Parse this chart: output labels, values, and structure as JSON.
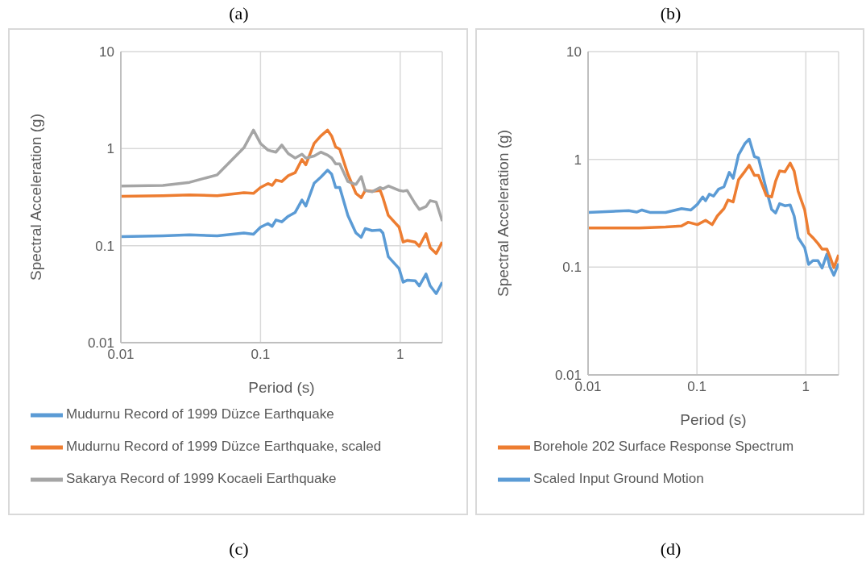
{
  "chart_data": [
    {
      "type": "line",
      "title": "(a)",
      "annotations": [
        "(c)"
      ],
      "xlabel": "Period (s)",
      "ylabel": "Spectral Acceleration (g)",
      "log": "xy",
      "grid": true,
      "legend": "bottom",
      "xlim": [
        0.01,
        2
      ],
      "xticks": [
        0.01,
        0.1,
        1
      ],
      "ylim": [
        0.01,
        10
      ],
      "yticks": [
        0.01,
        0.1,
        1,
        10
      ],
      "series": [
        {
          "name": "Mudurnu Record of 1999 Düzce Earthquake",
          "color": "#5b9bd5",
          "x": [
            0.01,
            0.02,
            0.031,
            0.049,
            0.076,
            0.089,
            0.1,
            0.113,
            0.121,
            0.129,
            0.142,
            0.158,
            0.177,
            0.198,
            0.211,
            0.242,
            0.27,
            0.302,
            0.323,
            0.345,
            0.369,
            0.422,
            0.482,
            0.526,
            0.562,
            0.629,
            0.719,
            0.752,
            0.822,
            0.982,
            1.05,
            1.12,
            1.28,
            1.37,
            1.53,
            1.64,
            1.81,
            2
          ],
          "values": [
            0.124,
            0.126,
            0.129,
            0.126,
            0.135,
            0.131,
            0.155,
            0.169,
            0.158,
            0.184,
            0.176,
            0.201,
            0.22,
            0.295,
            0.256,
            0.44,
            0.508,
            0.6,
            0.545,
            0.398,
            0.398,
            0.205,
            0.135,
            0.122,
            0.15,
            0.143,
            0.145,
            0.135,
            0.077,
            0.058,
            0.042,
            0.044,
            0.0435,
            0.0385,
            0.051,
            0.0385,
            0.032,
            0.042
          ]
        },
        {
          "name": "Mudurnu Record of 1999 Düzce Earthquake, scaled",
          "color": "#ed7d31",
          "x": [
            0.01,
            0.02,
            0.031,
            0.049,
            0.076,
            0.089,
            0.1,
            0.113,
            0.121,
            0.129,
            0.142,
            0.158,
            0.177,
            0.198,
            0.211,
            0.242,
            0.27,
            0.302,
            0.323,
            0.345,
            0.369,
            0.422,
            0.482,
            0.526,
            0.562,
            0.629,
            0.719,
            0.752,
            0.822,
            0.982,
            1.05,
            1.12,
            1.28,
            1.37,
            1.53,
            1.64,
            1.81,
            2
          ],
          "values": [
            0.323,
            0.327,
            0.334,
            0.327,
            0.351,
            0.346,
            0.398,
            0.436,
            0.418,
            0.474,
            0.458,
            0.526,
            0.565,
            0.773,
            0.681,
            1.13,
            1.35,
            1.55,
            1.35,
            1.04,
            0.986,
            0.545,
            0.346,
            0.312,
            0.371,
            0.364,
            0.371,
            0.312,
            0.205,
            0.155,
            0.109,
            0.113,
            0.109,
            0.0986,
            0.133,
            0.095,
            0.083,
            0.109
          ]
        },
        {
          "name": "Sakarya Record of 1999 Kocaeli Earthquake",
          "color": "#a5a5a5",
          "x": [
            0.01,
            0.02,
            0.031,
            0.049,
            0.076,
            0.089,
            0.1,
            0.113,
            0.121,
            0.129,
            0.142,
            0.158,
            0.177,
            0.198,
            0.211,
            0.242,
            0.27,
            0.302,
            0.323,
            0.345,
            0.369,
            0.422,
            0.482,
            0.526,
            0.562,
            0.629,
            0.719,
            0.752,
            0.822,
            0.982,
            1.05,
            1.12,
            1.28,
            1.37,
            1.53,
            1.64,
            1.81,
            2
          ],
          "values": [
            0.412,
            0.418,
            0.449,
            0.537,
            1.02,
            1.55,
            1.13,
            0.966,
            0.94,
            0.92,
            1.09,
            0.888,
            0.8,
            0.875,
            0.8,
            0.84,
            0.92,
            0.857,
            0.8,
            0.695,
            0.695,
            0.458,
            0.427,
            0.515,
            0.371,
            0.359,
            0.398,
            0.385,
            0.412,
            0.371,
            0.364,
            0.371,
            0.271,
            0.236,
            0.253,
            0.291,
            0.281,
            0.179
          ]
        }
      ]
    },
    {
      "type": "line",
      "title": "(b)",
      "annotations": [
        "(d)"
      ],
      "xlabel": "Period (s)",
      "ylabel": "Spectral Acceleration (g)",
      "log": "xy",
      "grid": true,
      "legend": "bottom",
      "xlim": [
        0.01,
        2
      ],
      "xticks": [
        0.01,
        0.1,
        1
      ],
      "ylim": [
        0.01,
        10
      ],
      "yticks": [
        0.01,
        0.1,
        1,
        10
      ],
      "series": [
        {
          "name": "Scaled Input Ground Motion",
          "color": "#5b9bd5",
          "x": [
            0.01,
            0.0236,
            0.0279,
            0.0312,
            0.0369,
            0.0516,
            0.0722,
            0.0879,
            0.101,
            0.113,
            0.12,
            0.13,
            0.142,
            0.158,
            0.177,
            0.198,
            0.215,
            0.241,
            0.277,
            0.302,
            0.337,
            0.367,
            0.434,
            0.485,
            0.528,
            0.574,
            0.642,
            0.718,
            0.781,
            0.85,
            0.977,
            1.06,
            1.16,
            1.29,
            1.41,
            1.56,
            1.66,
            1.81,
            2
          ],
          "values": [
            0.322,
            0.334,
            0.324,
            0.339,
            0.322,
            0.322,
            0.349,
            0.339,
            0.383,
            0.448,
            0.413,
            0.476,
            0.456,
            0.529,
            0.556,
            0.757,
            0.668,
            1.1,
            1.41,
            1.54,
            1.06,
            1.03,
            0.522,
            0.343,
            0.318,
            0.388,
            0.371,
            0.378,
            0.299,
            0.188,
            0.151,
            0.106,
            0.115,
            0.115,
            0.098,
            0.132,
            0.101,
            0.084,
            0.108
          ]
        },
        {
          "name": "Borehole 202 Surface Response Spectrum",
          "color": "#ed7d31",
          "x": [
            0.01,
            0.0295,
            0.0516,
            0.0722,
            0.0832,
            0.101,
            0.12,
            0.138,
            0.154,
            0.177,
            0.193,
            0.215,
            0.241,
            0.277,
            0.302,
            0.337,
            0.367,
            0.434,
            0.485,
            0.528,
            0.574,
            0.642,
            0.718,
            0.781,
            0.85,
            0.977,
            1.06,
            1.16,
            1.29,
            1.41,
            1.56,
            1.66,
            1.81,
            2
          ],
          "values": [
            0.231,
            0.231,
            0.236,
            0.241,
            0.261,
            0.248,
            0.272,
            0.248,
            0.299,
            0.349,
            0.42,
            0.403,
            0.648,
            0.78,
            0.883,
            0.711,
            0.711,
            0.461,
            0.448,
            0.628,
            0.78,
            0.766,
            0.923,
            0.78,
            0.506,
            0.339,
            0.206,
            0.188,
            0.166,
            0.147,
            0.147,
            0.126,
            0.099,
            0.13
          ]
        }
      ]
    }
  ]
}
